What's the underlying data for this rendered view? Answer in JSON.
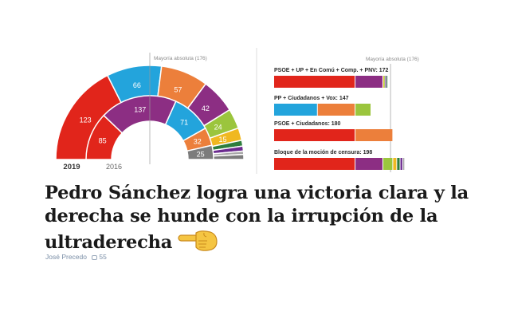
{
  "colors": {
    "psoe": "#e1251b",
    "up": "#23a4dc",
    "cs": "#ec7f3b",
    "pp": "#8c2e83",
    "vox": "#9bc53d",
    "en_comu": "#a8a8a8",
    "erc": "#f0b821",
    "pnv": "#2e7d3d",
    "bildu": "#6b2b8f",
    "other": "#7c7c7c"
  },
  "chart_data": [
    {
      "type": "pie",
      "subtype": "parliament-hemicycle",
      "majority_label": "Mayoría absoluta (176)",
      "rings": [
        {
          "label": "2019",
          "seats": [
            123,
            66,
            57,
            42,
            24,
            15,
            7,
            6,
            4,
            6
          ],
          "seat_labels": [
            "123",
            "66",
            "57",
            "42",
            "24",
            "15",
            "",
            "",
            "",
            ""
          ],
          "segment_colors": [
            "psoe",
            "up",
            "cs",
            "pp",
            "vox",
            "erc",
            "pnv",
            "bildu",
            "en_comu",
            "other"
          ]
        },
        {
          "label": "2016",
          "seats": [
            85,
            137,
            71,
            32,
            25
          ],
          "seat_labels": [
            "85",
            "137",
            "71",
            "32",
            "25"
          ],
          "segment_colors": [
            "psoe",
            "pp",
            "up",
            "cs",
            "other"
          ]
        }
      ]
    },
    {
      "type": "bar",
      "subtype": "stacked-horizontal",
      "majority_label": "Mayoría absoluta (176)",
      "xlim": [
        0,
        200
      ],
      "majority_value": 176,
      "rows": [
        {
          "label": "PSOE + UP + En Comú + Comp. + PNV: 172",
          "segments": [
            {
              "party": "psoe",
              "value": 123
            },
            {
              "party": "pp",
              "value": 42
            },
            {
              "party": "erc",
              "value": 1
            },
            {
              "party": "vox",
              "value": 2
            },
            {
              "party": "bildu",
              "value": 2
            },
            {
              "party": "pnv",
              "value": 2
            }
          ]
        },
        {
          "label": "PP + Ciudadanos + Vox: 147",
          "segments": [
            {
              "party": "up",
              "value": 66
            },
            {
              "party": "cs",
              "value": 57
            },
            {
              "party": "vox",
              "value": 24
            }
          ]
        },
        {
          "label": "PSOE + Ciudadanos: 180",
          "segments": [
            {
              "party": "psoe",
              "value": 123
            },
            {
              "party": "cs",
              "value": 57
            }
          ]
        },
        {
          "label": "Bloque de la moción de censura: 198",
          "segments": [
            {
              "party": "psoe",
              "value": 123
            },
            {
              "party": "pp",
              "value": 42
            },
            {
              "party": "vox",
              "value": 15
            },
            {
              "party": "erc",
              "value": 6
            },
            {
              "party": "pnv",
              "value": 5
            },
            {
              "party": "bildu",
              "value": 4
            },
            {
              "party": "en_comu",
              "value": 3
            }
          ]
        }
      ]
    }
  ],
  "article": {
    "headline": "Pedro Sánchez logra una victoria clara y la derecha se hunde con la irrupción de la ultraderecha",
    "author": "José Precedo",
    "comments": "55",
    "pointer_icon": "backhand-index-pointing-left-emoji"
  }
}
